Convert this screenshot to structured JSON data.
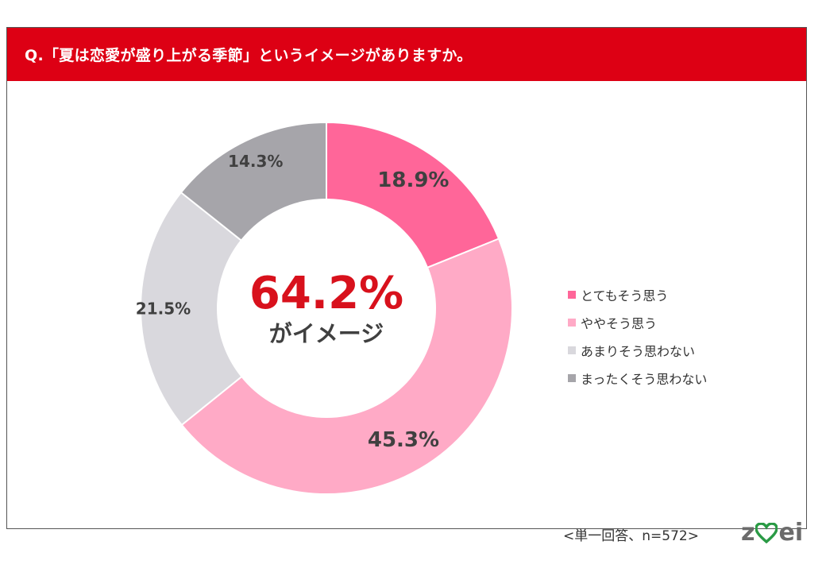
{
  "header": {
    "question": "Q.「夏は恋愛が盛り上がる季節」というイメージがありますか。"
  },
  "colors": {
    "header_bg": "#dd0014",
    "accent_red": "#d8111c",
    "text_dark": "#404040",
    "brand_heart": "#2a9a45"
  },
  "chart_data": {
    "type": "pie",
    "style": "donut",
    "categories": [
      "とてもそう思う",
      "ややそう思う",
      "あまりそう思わない",
      "まったくそう思わない"
    ],
    "values": [
      18.9,
      45.3,
      21.5,
      14.3
    ],
    "value_labels": [
      "18.9%",
      "45.3%",
      "21.5%",
      "14.3%"
    ],
    "colors": [
      "#ff6699",
      "#ffaac6",
      "#d9d8dd",
      "#a6a5aa"
    ],
    "center_value": "64.2%",
    "center_caption": "がイメージ",
    "legend_position": "right"
  },
  "footnote": "<単一回答、n=572>",
  "brand": {
    "letters": [
      "z",
      "w",
      "e",
      "i"
    ],
    "icon": "zwei-logo"
  }
}
